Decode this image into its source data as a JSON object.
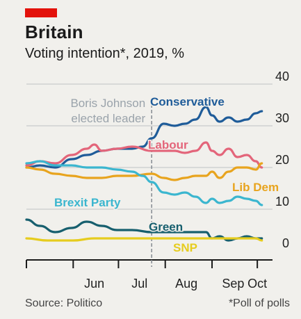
{
  "header": {
    "title": "Britain",
    "subtitle": "Voting intention*, 2019, %"
  },
  "footer": {
    "source": "Source: Politico",
    "note": "*Poll of polls"
  },
  "chart_data": {
    "type": "line",
    "ylim": [
      0,
      40
    ],
    "yticks": [
      0,
      10,
      20,
      30,
      40
    ],
    "xlim": [
      "2019-05-01",
      "2019-10-06"
    ],
    "xticks": [
      {
        "label": "Jun",
        "date": "2019-06-15"
      },
      {
        "label": "Jul",
        "date": "2019-07-15"
      },
      {
        "label": "Aug",
        "date": "2019-08-15"
      },
      {
        "label": "Sep",
        "date": "2019-09-15"
      },
      {
        "label": "Oct",
        "date": "2019-10-01"
      }
    ],
    "month_boundaries": [
      "2019-05-01",
      "2019-06-01",
      "2019-07-01",
      "2019-08-01",
      "2019-09-01",
      "2019-10-01"
    ],
    "grid": true,
    "annotation": {
      "date": "2019-07-23",
      "text_lines": [
        "Boris Johnson",
        "elected leader"
      ],
      "color": "#9aa3ab"
    },
    "series": [
      {
        "name": "Conservative",
        "color": "#1f5c99",
        "points": [
          [
            "2019-05-01",
            20
          ],
          [
            "2019-05-10",
            20.5
          ],
          [
            "2019-05-20",
            20
          ],
          [
            "2019-05-31",
            22
          ],
          [
            "2019-06-10",
            23
          ],
          [
            "2019-06-20",
            24
          ],
          [
            "2019-06-30",
            24.5
          ],
          [
            "2019-07-10",
            24.5
          ],
          [
            "2019-07-17",
            25
          ],
          [
            "2019-07-23",
            27
          ],
          [
            "2019-07-31",
            30.5
          ],
          [
            "2019-08-07",
            30
          ],
          [
            "2019-08-14",
            30.5
          ],
          [
            "2019-08-21",
            31.5
          ],
          [
            "2019-08-28",
            34.5
          ],
          [
            "2019-09-01",
            32.5
          ],
          [
            "2019-09-06",
            31
          ],
          [
            "2019-09-12",
            32
          ],
          [
            "2019-09-18",
            31
          ],
          [
            "2019-09-24",
            31.5
          ],
          [
            "2019-09-30",
            33
          ],
          [
            "2019-10-04",
            33.5
          ]
        ]
      },
      {
        "name": "Labour",
        "color": "#e3657a",
        "points": [
          [
            "2019-05-01",
            20.5
          ],
          [
            "2019-05-10",
            21.5
          ],
          [
            "2019-05-20",
            21
          ],
          [
            "2019-05-31",
            23
          ],
          [
            "2019-06-10",
            24.5
          ],
          [
            "2019-06-15",
            25.5
          ],
          [
            "2019-06-20",
            24
          ],
          [
            "2019-06-30",
            24.5
          ],
          [
            "2019-07-10",
            25
          ],
          [
            "2019-07-23",
            24
          ],
          [
            "2019-07-31",
            24
          ],
          [
            "2019-08-07",
            24
          ],
          [
            "2019-08-14",
            23.5
          ],
          [
            "2019-08-21",
            24
          ],
          [
            "2019-08-28",
            26
          ],
          [
            "2019-09-01",
            24
          ],
          [
            "2019-09-06",
            23
          ],
          [
            "2019-09-12",
            24.5
          ],
          [
            "2019-09-18",
            22.5
          ],
          [
            "2019-09-24",
            23
          ],
          [
            "2019-09-30",
            21.5
          ],
          [
            "2019-10-04",
            20
          ]
        ]
      },
      {
        "name": "Lib Dem",
        "color": "#e8a41e",
        "points": [
          [
            "2019-05-01",
            20
          ],
          [
            "2019-05-10",
            19.5
          ],
          [
            "2019-05-20",
            18.5
          ],
          [
            "2019-05-31",
            18
          ],
          [
            "2019-06-10",
            17.5
          ],
          [
            "2019-06-20",
            17.5
          ],
          [
            "2019-06-30",
            18
          ],
          [
            "2019-07-10",
            18
          ],
          [
            "2019-07-23",
            18.5
          ],
          [
            "2019-07-31",
            17.5
          ],
          [
            "2019-08-07",
            17
          ],
          [
            "2019-08-14",
            17.5
          ],
          [
            "2019-08-21",
            18
          ],
          [
            "2019-08-28",
            18
          ],
          [
            "2019-09-01",
            19
          ],
          [
            "2019-09-06",
            17.5
          ],
          [
            "2019-09-12",
            19
          ],
          [
            "2019-09-18",
            20
          ],
          [
            "2019-09-24",
            20
          ],
          [
            "2019-09-30",
            19.5
          ],
          [
            "2019-10-04",
            21
          ]
        ]
      },
      {
        "name": "Brexit Party",
        "color": "#3bb6cf",
        "points": [
          [
            "2019-05-01",
            21
          ],
          [
            "2019-05-10",
            21.5
          ],
          [
            "2019-05-20",
            20.5
          ],
          [
            "2019-05-31",
            20.5
          ],
          [
            "2019-06-10",
            20
          ],
          [
            "2019-06-20",
            20
          ],
          [
            "2019-06-30",
            19.5
          ],
          [
            "2019-07-10",
            19
          ],
          [
            "2019-07-17",
            18
          ],
          [
            "2019-07-23",
            16.5
          ],
          [
            "2019-07-31",
            14
          ],
          [
            "2019-08-07",
            13.5
          ],
          [
            "2019-08-14",
            14
          ],
          [
            "2019-08-21",
            13
          ],
          [
            "2019-08-28",
            11.5
          ],
          [
            "2019-09-01",
            12.5
          ],
          [
            "2019-09-06",
            11.5
          ],
          [
            "2019-09-12",
            12
          ],
          [
            "2019-09-18",
            13
          ],
          [
            "2019-09-24",
            12.5
          ],
          [
            "2019-09-30",
            12
          ],
          [
            "2019-10-04",
            11
          ]
        ]
      },
      {
        "name": "Green",
        "color": "#175f6e",
        "points": [
          [
            "2019-05-01",
            7.5
          ],
          [
            "2019-05-10",
            6
          ],
          [
            "2019-05-20",
            4.5
          ],
          [
            "2019-05-31",
            5.5
          ],
          [
            "2019-06-10",
            7
          ],
          [
            "2019-06-20",
            6
          ],
          [
            "2019-06-30",
            5
          ],
          [
            "2019-07-10",
            5
          ],
          [
            "2019-07-23",
            4.5
          ],
          [
            "2019-07-31",
            4.5
          ],
          [
            "2019-08-07",
            4.5
          ],
          [
            "2019-08-14",
            4.5
          ],
          [
            "2019-08-21",
            4.5
          ],
          [
            "2019-08-28",
            4.5
          ],
          [
            "2019-09-01",
            3
          ],
          [
            "2019-09-06",
            3.5
          ],
          [
            "2019-09-12",
            2.5
          ],
          [
            "2019-09-18",
            3
          ],
          [
            "2019-09-24",
            3.5
          ],
          [
            "2019-09-30",
            3
          ],
          [
            "2019-10-04",
            3
          ]
        ]
      },
      {
        "name": "SNP",
        "color": "#e6cc1e",
        "points": [
          [
            "2019-05-01",
            3
          ],
          [
            "2019-05-15",
            2.5
          ],
          [
            "2019-06-01",
            2.5
          ],
          [
            "2019-06-15",
            3
          ],
          [
            "2019-07-01",
            3
          ],
          [
            "2019-07-23",
            3
          ],
          [
            "2019-08-07",
            3
          ],
          [
            "2019-08-21",
            3
          ],
          [
            "2019-09-01",
            3
          ],
          [
            "2019-09-15",
            3
          ],
          [
            "2019-09-30",
            3
          ],
          [
            "2019-10-04",
            2.5
          ]
        ]
      }
    ]
  }
}
